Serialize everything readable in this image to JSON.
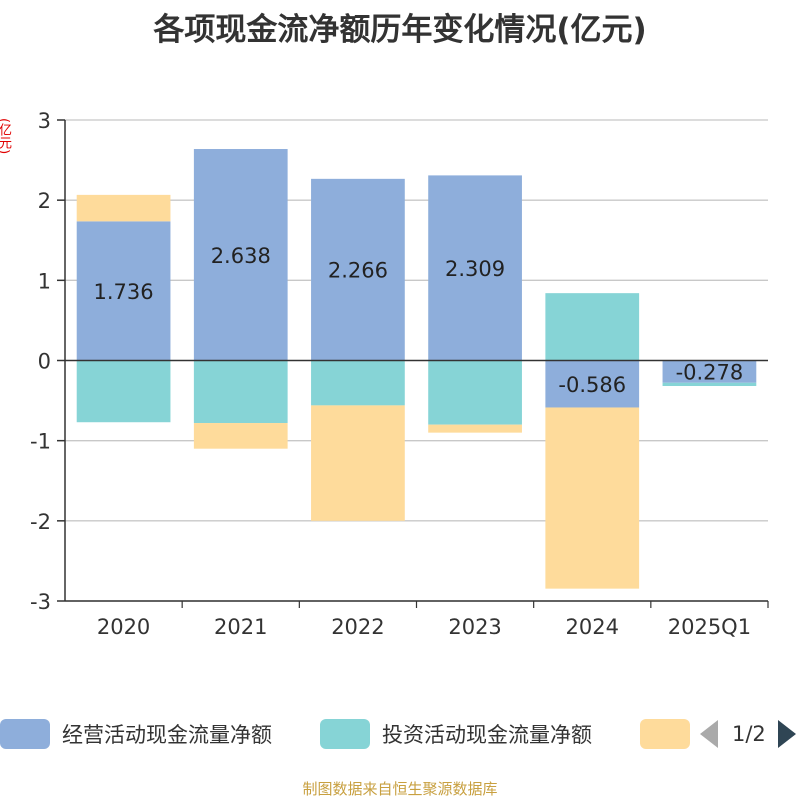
{
  "chart_data": {
    "type": "bar",
    "stacked": true,
    "title": "各项现金流净额历年变化情况(亿元)",
    "ylabel": "(亿元)",
    "ylim": [
      -3,
      3
    ],
    "yticks": [
      3,
      2,
      1,
      0,
      -1,
      -2,
      -3
    ],
    "categories": [
      "2020",
      "2021",
      "2022",
      "2023",
      "2024",
      "2025Q1"
    ],
    "series": [
      {
        "name": "经营活动现金流量净额",
        "color": "#8eaedb",
        "values": [
          1.736,
          2.638,
          2.266,
          2.309,
          -0.586,
          -0.278
        ]
      },
      {
        "name": "投资活动现金流量净额",
        "color": "#86d4d6",
        "values": [
          -0.77,
          -0.78,
          -0.56,
          -0.8,
          0.84,
          -0.04
        ]
      },
      {
        "name": "",
        "color": "#fedb9b",
        "values": [
          0.33,
          -0.32,
          -1.44,
          -0.1,
          -2.26,
          0
        ]
      }
    ],
    "data_labels": [
      "1.736",
      "2.638",
      "2.266",
      "2.309",
      "-0.586",
      "-0.278"
    ]
  },
  "legend": {
    "page": "1/2"
  },
  "source": "制图数据来自恒生聚源数据库"
}
